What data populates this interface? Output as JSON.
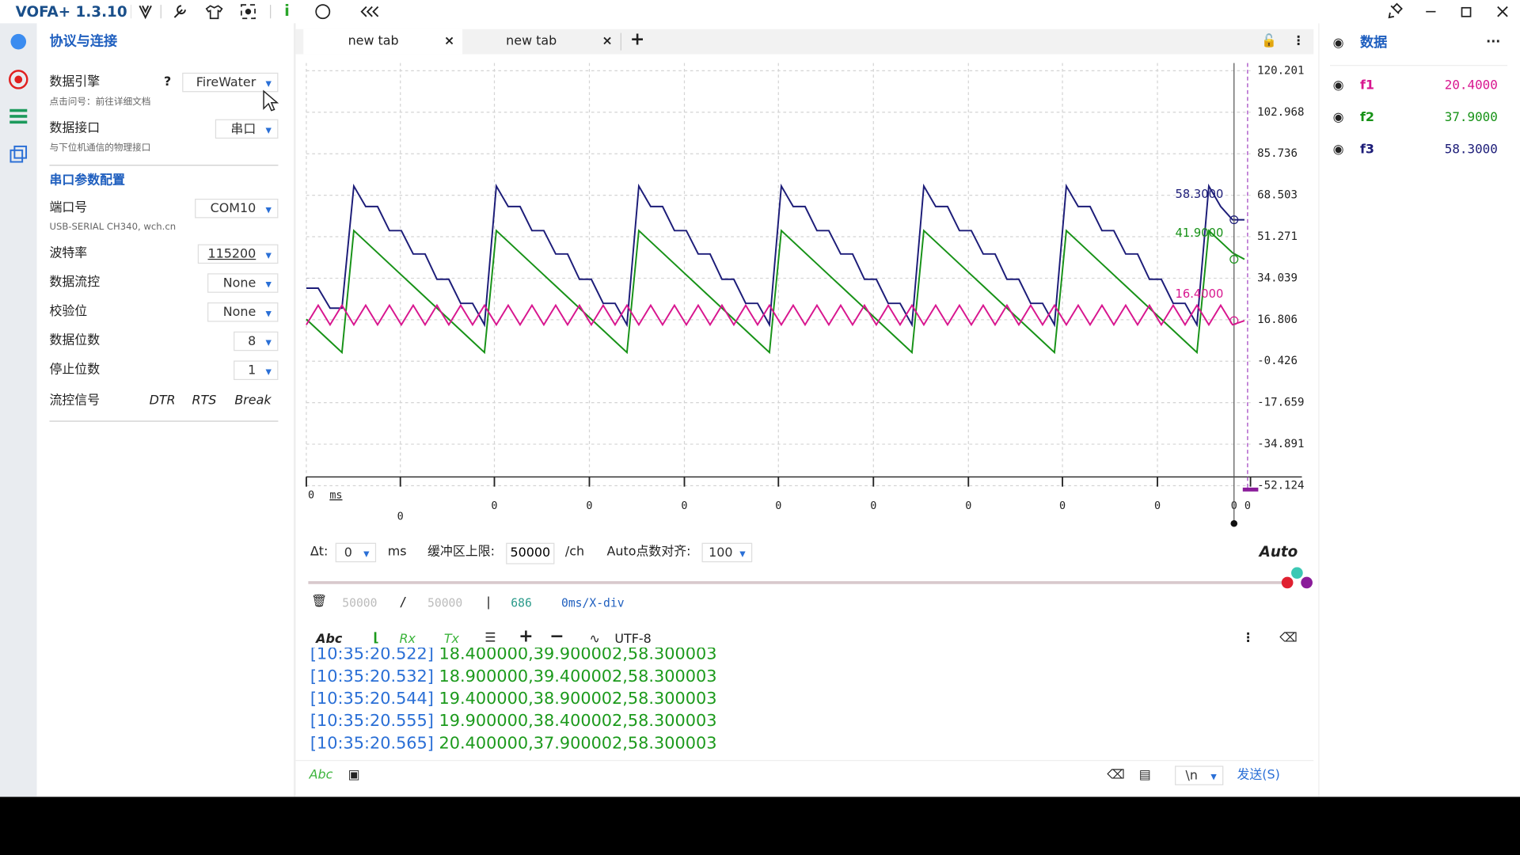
{
  "title_bar": {
    "app_name": "VOFA+ 1.3.10"
  },
  "left_panel": {
    "title": "协议与连接",
    "engine": {
      "label": "数据引擎",
      "help": "?",
      "value": "FireWater",
      "hint": "点击问号：前往详细文档"
    },
    "interface": {
      "label": "数据接口",
      "value": "串口",
      "hint": "与下位机通信的物理接口"
    },
    "section": "串口参数配置",
    "port": {
      "label": "端口号",
      "value": "COM10",
      "hint": "USB-SERIAL CH340, wch.cn"
    },
    "settings": [
      {
        "label": "波特率",
        "value": "115200"
      },
      {
        "label": "数据流控",
        "value": "None"
      },
      {
        "label": "校验位",
        "value": "None"
      },
      {
        "label": "数据位数",
        "value": "8"
      },
      {
        "label": "停止位数",
        "value": "1"
      }
    ],
    "flow_signal": {
      "label": "流控信号",
      "buttons": [
        "DTR",
        "RTS",
        "Break"
      ]
    }
  },
  "tabs": [
    "new tab",
    "new tab"
  ],
  "chart_data": {
    "type": "line",
    "series": [
      {
        "name": "f1",
        "color": "#d8168f",
        "values": [
          14.7,
          22.8,
          14.7,
          22.8,
          14.7,
          22.8,
          14.7,
          22.8,
          14.7,
          22.8,
          14.7,
          22.8,
          14.7,
          22.8,
          14.7,
          22.8,
          14.7,
          22.8,
          14.7,
          22.8,
          14.7,
          22.8,
          14.7,
          22.8,
          14.7,
          22.8,
          14.7,
          22.8,
          14.7,
          22.8,
          14.7,
          22.8,
          14.7,
          22.8,
          14.7,
          22.8,
          14.7,
          22.8,
          14.7,
          22.8,
          14.7,
          22.8,
          14.7,
          22.8,
          14.7,
          22.8,
          14.7,
          22.8,
          14.7,
          22.8,
          14.7,
          22.8,
          14.7,
          22.8,
          14.7,
          22.8,
          14.7,
          22.8,
          14.7,
          22.8,
          14.7,
          22.8,
          14.7,
          22.8,
          14.7,
          22.8,
          14.7,
          22.8,
          14.7,
          22.8,
          14.7,
          22.8,
          14.7,
          22.8,
          14.7,
          22.8,
          14.7,
          22.8,
          14.7,
          16.4
        ]
      },
      {
        "name": "f2",
        "color": "#179217",
        "values": [
          17.0,
          12.4,
          7.8,
          3.2,
          53.8,
          49.2,
          44.6,
          40.0,
          35.4,
          30.8,
          26.2,
          21.6,
          17.0,
          12.4,
          7.8,
          3.2,
          53.8,
          49.2,
          44.6,
          40.0,
          35.4,
          30.8,
          26.2,
          21.6,
          17.0,
          12.4,
          7.8,
          3.2,
          53.8,
          49.2,
          44.6,
          40.0,
          35.4,
          30.8,
          26.2,
          21.6,
          17.0,
          12.4,
          7.8,
          3.2,
          53.8,
          49.2,
          44.6,
          40.0,
          35.4,
          30.8,
          26.2,
          21.6,
          17.0,
          12.4,
          7.8,
          3.2,
          53.8,
          49.2,
          44.6,
          40.0,
          35.4,
          30.8,
          26.2,
          21.6,
          17.0,
          12.4,
          7.8,
          3.2,
          53.8,
          49.2,
          44.6,
          40.0,
          35.4,
          30.8,
          26.2,
          21.6,
          17.0,
          12.4,
          7.8,
          3.2,
          53.8,
          49.2,
          44.6,
          41.9
        ]
      },
      {
        "name": "f3",
        "color": "#1c1c78",
        "values": [
          29.9,
          29.9,
          21.6,
          21.6,
          72.3,
          63.8,
          63.8,
          53.8,
          53.8,
          44.1,
          44.1,
          33.6,
          33.6,
          23.6,
          23.6,
          14.7,
          72.3,
          63.8,
          63.8,
          53.8,
          53.8,
          44.1,
          44.1,
          33.6,
          33.6,
          23.6,
          23.6,
          14.7,
          72.3,
          63.8,
          63.8,
          53.8,
          53.8,
          44.1,
          44.1,
          33.6,
          33.6,
          23.6,
          23.6,
          14.7,
          72.3,
          63.8,
          63.8,
          53.8,
          53.8,
          44.1,
          44.1,
          33.6,
          33.6,
          23.6,
          23.6,
          14.7,
          72.3,
          63.8,
          63.8,
          53.8,
          53.8,
          44.1,
          44.1,
          33.6,
          33.6,
          23.6,
          23.6,
          14.7,
          72.3,
          63.8,
          63.8,
          53.8,
          53.8,
          44.1,
          44.1,
          33.6,
          33.6,
          23.6,
          23.6,
          14.7,
          72.3,
          63.8,
          58.3,
          58.3
        ]
      }
    ],
    "ylim": [
      -52.124,
      120.201
    ],
    "yticks": [
      120.201,
      102.968,
      85.736,
      68.503,
      51.271,
      34.039,
      16.806,
      -0.426,
      -17.659,
      -34.891,
      -52.124
    ],
    "grid": true,
    "x_unit": "ms",
    "x_tick_labels": [
      "0",
      "0",
      "0",
      "0",
      "0",
      "0",
      "0",
      "0",
      "0",
      "0",
      "0",
      "0"
    ],
    "cursor_labels": [
      "58.3000",
      "41.9000",
      "16.4000"
    ]
  },
  "controls": {
    "dt_label": "Δt:",
    "dt_value": "0",
    "dt_unit": "ms",
    "buffer_label": "缓冲区上限:",
    "buffer_value": "50000",
    "buffer_unit": "/ch",
    "align_label": "Auto点数对齐:",
    "align_value": "100",
    "auto": "Auto"
  },
  "stats": {
    "used": "50000",
    "slash": "/",
    "total": "50000",
    "bar": "|",
    "count": "686",
    "div": "0ms/X-div"
  },
  "toolbar": {
    "abc": "Abc",
    "rx": "Rx",
    "tx": "Tx",
    "encoding": "UTF-8"
  },
  "log": [
    {
      "time": "[10:35:20.522]",
      "data": "18.400000,39.900002,58.300003"
    },
    {
      "time": "[10:35:20.532]",
      "data": "18.900000,39.400002,58.300003"
    },
    {
      "time": "[10:35:20.544]",
      "data": "19.400000,38.900002,58.300003"
    },
    {
      "time": "[10:35:20.555]",
      "data": "19.900000,38.400002,58.300003"
    },
    {
      "time": "[10:35:20.565]",
      "data": "20.400000,37.900002,58.300003"
    }
  ],
  "send_bar": {
    "abc": "Abc",
    "newline": "\\n",
    "send": "发送(S)"
  },
  "right_panel": {
    "title": "数据",
    "readouts": [
      "20.4000",
      "37.9000",
      "58.3000"
    ]
  }
}
